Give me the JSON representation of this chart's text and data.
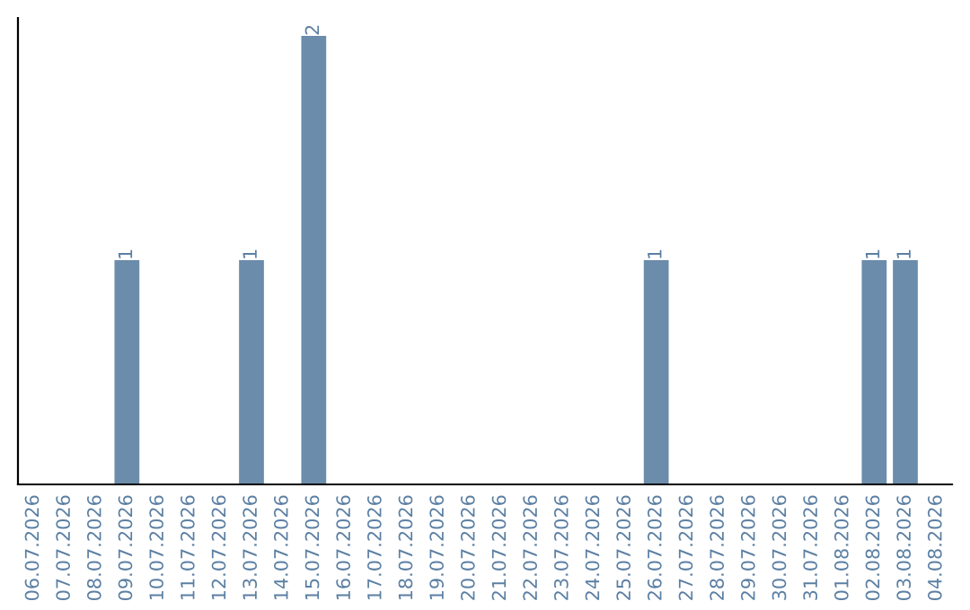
{
  "chart_data": {
    "type": "bar",
    "categories": [
      "06.07.2026",
      "07.07.2026",
      "08.07.2026",
      "09.07.2026",
      "10.07.2026",
      "11.07.2026",
      "12.07.2026",
      "13.07.2026",
      "14.07.2026",
      "15.07.2026",
      "16.07.2026",
      "17.07.2026",
      "18.07.2026",
      "19.07.2026",
      "20.07.2026",
      "21.07.2026",
      "22.07.2026",
      "23.07.2026",
      "24.07.2026",
      "25.07.2026",
      "26.07.2026",
      "27.07.2026",
      "28.07.2026",
      "29.07.2026",
      "30.07.2026",
      "31.07.2026",
      "01.08.2026",
      "02.08.2026",
      "03.08.2026",
      "04.08.2026"
    ],
    "values": [
      0,
      0,
      0,
      1,
      0,
      0,
      0,
      1,
      0,
      2,
      0,
      0,
      0,
      0,
      0,
      0,
      0,
      0,
      0,
      0,
      1,
      0,
      0,
      0,
      0,
      0,
      0,
      1,
      1,
      0
    ],
    "value_labels": [
      null,
      null,
      null,
      "1",
      null,
      null,
      null,
      "1",
      null,
      "2",
      null,
      null,
      null,
      null,
      null,
      null,
      null,
      null,
      null,
      null,
      "1",
      null,
      null,
      null,
      null,
      null,
      null,
      "1",
      "1",
      null
    ],
    "color": "#6b8cab",
    "grid": false,
    "legend": false
  }
}
